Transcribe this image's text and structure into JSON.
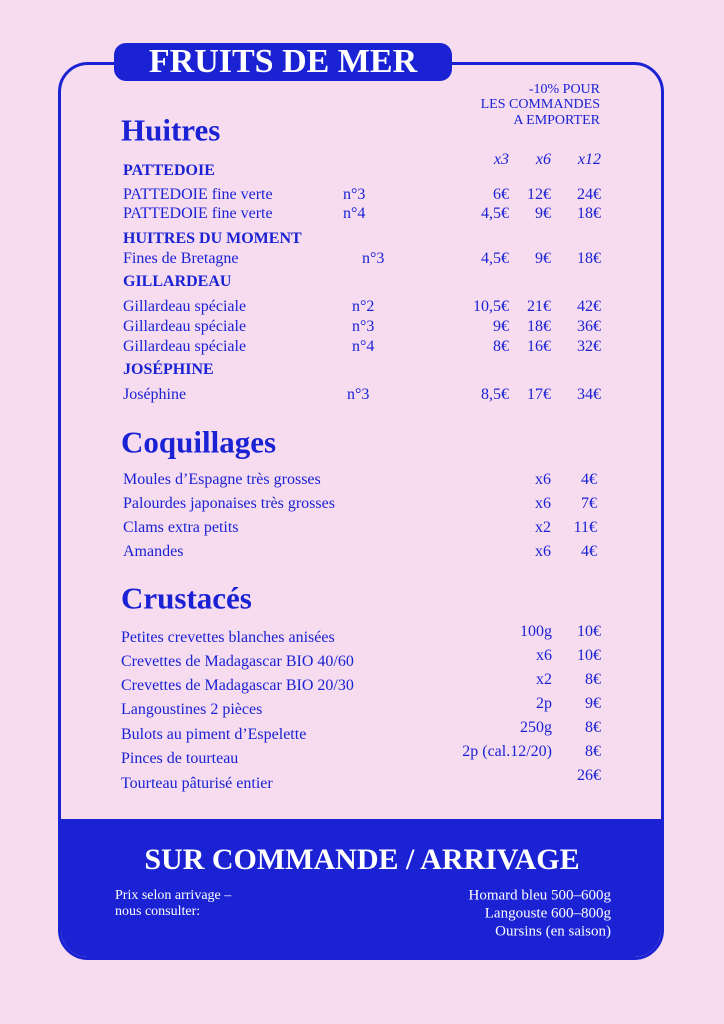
{
  "header": {
    "title": "FRUITS DE MER",
    "note": [
      "-10% POUR",
      "LES COMMANDES",
      "A EMPORTER"
    ]
  },
  "huitres": {
    "title": "Huitres",
    "columns": [
      "x3",
      "x6",
      "x12"
    ],
    "groups": [
      {
        "name": "PATTEDOIE",
        "items": [
          {
            "name": "PATTEDOIE fine verte",
            "size": "n°3",
            "prices": [
              "6€",
              "12€",
              "24€"
            ]
          },
          {
            "name": "PATTEDOIE fine verte",
            "size": "n°4",
            "prices": [
              "4,5€",
              "9€",
              "18€"
            ]
          }
        ]
      },
      {
        "name": "HUITRES DU MOMENT",
        "items": [
          {
            "name": "Fines de Bretagne",
            "size": "n°3",
            "prices": [
              "4,5€",
              "9€",
              "18€"
            ]
          }
        ]
      },
      {
        "name": "GILLARDEAU",
        "items": [
          {
            "name": "Gillardeau spéciale",
            "size": "n°2",
            "prices": [
              "10,5€",
              "21€",
              "42€"
            ]
          },
          {
            "name": "Gillardeau spéciale",
            "size": "n°3",
            "prices": [
              "9€",
              "18€",
              "36€"
            ]
          },
          {
            "name": "Gillardeau spéciale",
            "size": "n°4",
            "prices": [
              "8€",
              "16€",
              "32€"
            ]
          }
        ]
      },
      {
        "name": "JOSÉPHINE",
        "items": [
          {
            "name": "Joséphine",
            "size": "n°3",
            "prices": [
              "8,5€",
              "17€",
              "34€"
            ]
          }
        ]
      }
    ]
  },
  "coquillages": {
    "title": "Coquillages",
    "items": [
      {
        "name": "Moules d’Espagne très grosses",
        "qty": "x6",
        "price": "4€"
      },
      {
        "name": "Palourdes japonaises très grosses",
        "qty": "x6",
        "price": "7€"
      },
      {
        "name": "Clams extra petits",
        "qty": "x2",
        "price": "11€"
      },
      {
        "name": "Amandes",
        "qty": "x6",
        "price": "4€"
      }
    ]
  },
  "crustaces": {
    "title": "Crustacés",
    "items": [
      {
        "name": "Petites crevettes blanches anisées",
        "qty": "100g",
        "price": "10€"
      },
      {
        "name": "Crevettes de Madagascar BIO 40/60",
        "qty": "x6",
        "price": "10€"
      },
      {
        "name": "Crevettes de Madagascar BIO 20/30",
        "qty": "x2",
        "price": "8€"
      },
      {
        "name": "Langoustines 2 pièces",
        "qty": "2p",
        "price": "9€"
      },
      {
        "name": "Bulots au piment d’Espelette",
        "qty": "250g",
        "price": "8€"
      },
      {
        "name": "Pinces de tourteau",
        "qty": "2p (cal.12/20)",
        "price": "8€"
      },
      {
        "name": "Tourteau pâturisé entier",
        "price": "26€"
      }
    ]
  },
  "footer": {
    "title": "SUR COMMANDE / ARRIVAGE",
    "left": [
      "Prix selon arrivage –",
      "nous consulter:"
    ],
    "right": [
      "Homard bleu 500–600g",
      "Langouste 600–800g",
      "Oursins (en saison)"
    ]
  }
}
